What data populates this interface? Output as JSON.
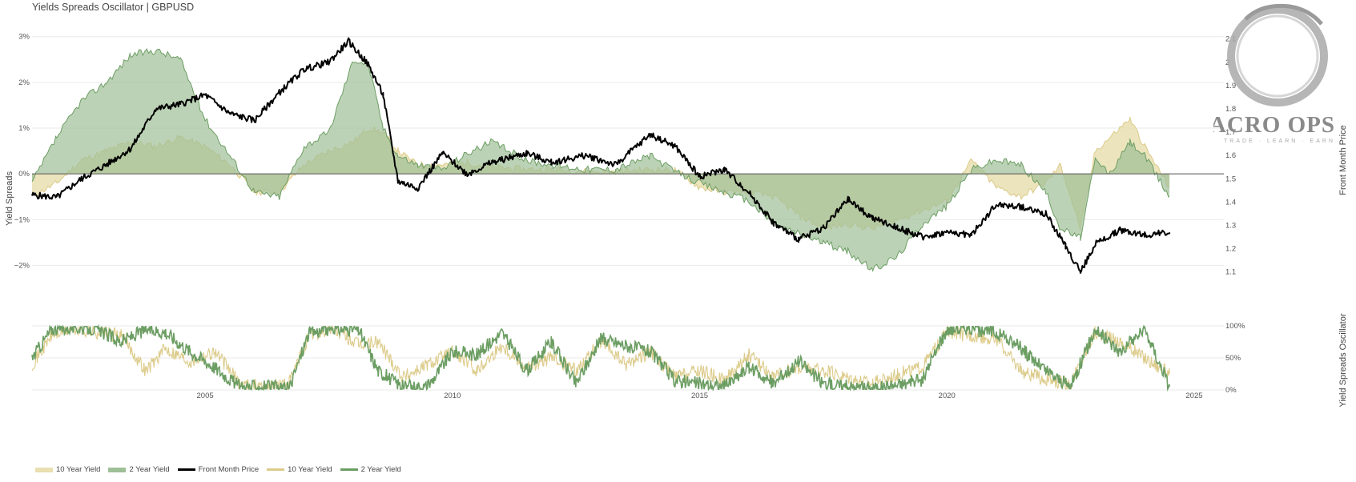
{
  "title": "Yields Spreads Oscillator | GBPUSD",
  "logo": {
    "name": "MACRO OPS",
    "tagline": "TRADE · LEARN · EARN"
  },
  "colors": {
    "ten_year_fill": "#e9dfb0",
    "ten_year_line": "#dccb8a",
    "two_year_fill": "#9fbf97",
    "two_year_line": "#6c9e63",
    "price": "#000000",
    "grid": "#e9e9e9"
  },
  "chart_data": [
    {
      "type": "area",
      "title": "Yields Spreads Oscillator | GBPUSD",
      "ylabel": "Yield Spreads",
      "y2label": "Front Month Price",
      "ylim": [
        -0.025,
        0.031
      ],
      "y2lim": [
        1.03,
        2.13
      ],
      "xlim": [
        2001.5,
        2025.6
      ],
      "y_ticks": [
        {
          "v": 0.03,
          "label": "3%"
        },
        {
          "v": 0.02,
          "label": "2%"
        },
        {
          "v": 0.01,
          "label": "1%"
        },
        {
          "v": 0,
          "label": "0%"
        },
        {
          "v": -0.01,
          "label": "−1%"
        },
        {
          "v": -0.02,
          "label": "−2%"
        }
      ],
      "y2_ticks": [
        {
          "v": 2.1,
          "label": "2.1"
        },
        {
          "v": 2.0,
          "label": "2"
        },
        {
          "v": 1.9,
          "label": "1.9"
        },
        {
          "v": 1.8,
          "label": "1.8"
        },
        {
          "v": 1.7,
          "label": "1.7"
        },
        {
          "v": 1.6,
          "label": "1.6"
        },
        {
          "v": 1.5,
          "label": "1.5"
        },
        {
          "v": 1.4,
          "label": "1.4"
        },
        {
          "v": 1.3,
          "label": "1.3"
        },
        {
          "v": 1.2,
          "label": "1.2"
        },
        {
          "v": 1.1,
          "label": "1.1"
        }
      ],
      "grid": true,
      "series": [
        {
          "name": "10 Year Yield",
          "kind": "area",
          "axis": "left",
          "x": [
            2001.5,
            2002.0,
            2002.5,
            2003.0,
            2003.5,
            2004.0,
            2004.5,
            2005.0,
            2005.5,
            2006.0,
            2006.5,
            2007.0,
            2007.5,
            2008.0,
            2008.3,
            2008.6,
            2008.9,
            2009.3,
            2009.8,
            2010.3,
            2010.8,
            2011.5,
            2012.0,
            2012.7,
            2013.3,
            2014.0,
            2014.5,
            2015.0,
            2015.5,
            2016.0,
            2016.5,
            2017.0,
            2017.5,
            2018.0,
            2018.5,
            2019.0,
            2019.5,
            2020.0,
            2020.5,
            2021.0,
            2021.5,
            2022.0,
            2022.3,
            2022.7,
            2023.0,
            2023.3,
            2023.7,
            2024.0,
            2024.5
          ],
          "y": [
            -0.005,
            -0.002,
            0.003,
            0.005,
            0.007,
            0.006,
            0.008,
            0.006,
            0.002,
            -0.004,
            -0.004,
            0.002,
            0.005,
            0.007,
            0.01,
            0.009,
            0.005,
            0.002,
            0.002,
            0.0025,
            0.0015,
            0.001,
            0.001,
            0.0005,
            0.0005,
            0.001,
            0.0008,
            -0.003,
            -0.004,
            -0.004,
            -0.005,
            -0.009,
            -0.012,
            -0.011,
            -0.012,
            -0.01,
            -0.008,
            -0.006,
            0.003,
            -0.003,
            -0.005,
            -0.002,
            0.002,
            -0.012,
            0.005,
            0.008,
            0.012,
            0.006,
            -0.003
          ]
        },
        {
          "name": "2 Year Yield",
          "kind": "area",
          "axis": "left",
          "x": [
            2001.5,
            2002.0,
            2002.5,
            2003.0,
            2003.5,
            2004.0,
            2004.5,
            2005.0,
            2005.5,
            2006.0,
            2006.5,
            2007.0,
            2007.5,
            2008.0,
            2008.3,
            2008.6,
            2008.9,
            2009.3,
            2009.8,
            2010.3,
            2010.8,
            2011.5,
            2012.0,
            2012.7,
            2013.3,
            2014.0,
            2014.5,
            2015.0,
            2015.5,
            2016.0,
            2016.5,
            2017.0,
            2017.5,
            2018.0,
            2018.5,
            2019.0,
            2019.5,
            2020.0,
            2020.5,
            2021.0,
            2021.5,
            2022.0,
            2022.3,
            2022.7,
            2023.0,
            2023.3,
            2023.7,
            2024.0,
            2024.5
          ],
          "y": [
            -0.002,
            0.008,
            0.016,
            0.02,
            0.026,
            0.027,
            0.025,
            0.012,
            0.004,
            -0.004,
            -0.005,
            0.006,
            0.009,
            0.025,
            0.024,
            0.01,
            0.004,
            0.002,
            0.001,
            0.0045,
            0.007,
            0.003,
            0.002,
            0.001,
            0.001,
            0.004,
            0.0005,
            -0.002,
            -0.004,
            -0.006,
            -0.011,
            -0.013,
            -0.015,
            -0.017,
            -0.021,
            -0.018,
            -0.011,
            -0.007,
            0.001,
            0.003,
            0.002,
            -0.004,
            -0.012,
            -0.014,
            0.003,
            0.0,
            0.007,
            0.004,
            -0.005
          ]
        },
        {
          "name": "Front Month Price",
          "kind": "line",
          "axis": "right",
          "x": [
            2001.5,
            2002.0,
            2002.5,
            2003.0,
            2003.5,
            2004.0,
            2004.5,
            2005.0,
            2005.5,
            2006.0,
            2006.5,
            2007.0,
            2007.5,
            2007.9,
            2008.3,
            2008.6,
            2008.9,
            2009.3,
            2009.8,
            2010.3,
            2010.8,
            2011.5,
            2012.0,
            2012.7,
            2013.3,
            2014.0,
            2014.5,
            2015.0,
            2015.5,
            2016.0,
            2016.5,
            2017.0,
            2017.5,
            2018.0,
            2018.5,
            2019.0,
            2019.5,
            2020.0,
            2020.5,
            2021.0,
            2021.5,
            2022.0,
            2022.4,
            2022.7,
            2023.0,
            2023.5,
            2024.0,
            2024.5
          ],
          "y": [
            1.43,
            1.42,
            1.5,
            1.56,
            1.63,
            1.8,
            1.82,
            1.86,
            1.78,
            1.75,
            1.87,
            1.97,
            2.0,
            2.09,
            1.99,
            1.86,
            1.49,
            1.46,
            1.61,
            1.52,
            1.57,
            1.61,
            1.57,
            1.6,
            1.56,
            1.69,
            1.64,
            1.51,
            1.54,
            1.44,
            1.31,
            1.24,
            1.29,
            1.41,
            1.33,
            1.29,
            1.25,
            1.27,
            1.26,
            1.39,
            1.38,
            1.35,
            1.21,
            1.1,
            1.22,
            1.28,
            1.26,
            1.27
          ]
        }
      ]
    },
    {
      "type": "line",
      "ylabel": "Yield Spreads Oscillator",
      "ylim": [
        0,
        1
      ],
      "xlim": [
        2001.5,
        2025.6
      ],
      "y_ticks": [
        {
          "v": 1,
          "label": "100%"
        },
        {
          "v": 0.5,
          "label": "50%"
        },
        {
          "v": 0,
          "label": "0%"
        }
      ],
      "x_ticks": [
        {
          "v": 2005,
          "label": "2005"
        },
        {
          "v": 2010,
          "label": "2010"
        },
        {
          "v": 2015,
          "label": "2015"
        },
        {
          "v": 2020,
          "label": "2020"
        },
        {
          "v": 2025,
          "label": "2025"
        }
      ],
      "series": [
        {
          "name": "10 Year Yield",
          "x": [
            2001.5,
            2001.9,
            2002.3,
            2002.8,
            2003.3,
            2003.8,
            2004.2,
            2004.7,
            2005.2,
            2005.7,
            2006.2,
            2006.7,
            2007.1,
            2007.6,
            2008.1,
            2008.5,
            2009.0,
            2009.5,
            2010.0,
            2010.5,
            2011.0,
            2011.5,
            2012.0,
            2012.5,
            2013.0,
            2013.5,
            2014.0,
            2014.5,
            2015.0,
            2015.5,
            2016.0,
            2016.5,
            2017.0,
            2017.5,
            2018.0,
            2018.5,
            2019.0,
            2019.5,
            2020.0,
            2020.5,
            2021.0,
            2021.5,
            2022.0,
            2022.5,
            2023.0,
            2023.5,
            2024.0,
            2024.5
          ],
          "y": [
            0.4,
            0.85,
            0.95,
            0.9,
            0.85,
            0.3,
            0.65,
            0.45,
            0.6,
            0.1,
            0.05,
            0.1,
            0.85,
            0.95,
            0.7,
            0.75,
            0.2,
            0.4,
            0.6,
            0.3,
            0.7,
            0.35,
            0.5,
            0.3,
            0.75,
            0.4,
            0.6,
            0.2,
            0.3,
            0.15,
            0.55,
            0.2,
            0.35,
            0.3,
            0.2,
            0.1,
            0.25,
            0.35,
            0.9,
            0.85,
            0.8,
            0.3,
            0.15,
            0.1,
            0.9,
            0.75,
            0.5,
            0.25
          ]
        },
        {
          "name": "2 Year Yield",
          "x": [
            2001.5,
            2001.9,
            2002.3,
            2002.8,
            2003.3,
            2003.8,
            2004.2,
            2004.7,
            2005.2,
            2005.7,
            2006.2,
            2006.7,
            2007.1,
            2007.6,
            2008.1,
            2008.5,
            2009.0,
            2009.5,
            2010.0,
            2010.5,
            2011.0,
            2011.5,
            2012.0,
            2012.5,
            2013.0,
            2013.5,
            2014.0,
            2014.5,
            2015.0,
            2015.5,
            2016.0,
            2016.5,
            2017.0,
            2017.5,
            2018.0,
            2018.5,
            2019.0,
            2019.5,
            2020.0,
            2020.5,
            2021.0,
            2021.5,
            2022.0,
            2022.5,
            2023.0,
            2023.5,
            2024.0,
            2024.5
          ],
          "y": [
            0.5,
            0.95,
            0.98,
            0.95,
            0.75,
            0.95,
            0.9,
            0.6,
            0.35,
            0.05,
            0.05,
            0.02,
            0.9,
            0.95,
            0.95,
            0.3,
            0.05,
            0.05,
            0.6,
            0.55,
            0.9,
            0.3,
            0.75,
            0.1,
            0.8,
            0.7,
            0.6,
            0.15,
            0.1,
            0.05,
            0.35,
            0.1,
            0.45,
            0.1,
            0.05,
            0.02,
            0.08,
            0.15,
            0.95,
            0.95,
            0.9,
            0.65,
            0.3,
            0.05,
            0.95,
            0.6,
            0.95,
            0.05
          ]
        }
      ]
    }
  ],
  "legend": [
    {
      "label": "10 Year Yield",
      "kind": "area",
      "color": "#e9dfb0"
    },
    {
      "label": "2 Year Yield",
      "kind": "area",
      "color": "#9fbf97"
    },
    {
      "label": "Front Month Price",
      "kind": "line",
      "color": "#000000"
    },
    {
      "label": "10 Year Yield",
      "kind": "line",
      "color": "#dccb8a"
    },
    {
      "label": "2 Year Yield",
      "kind": "line",
      "color": "#6c9e63"
    }
  ]
}
